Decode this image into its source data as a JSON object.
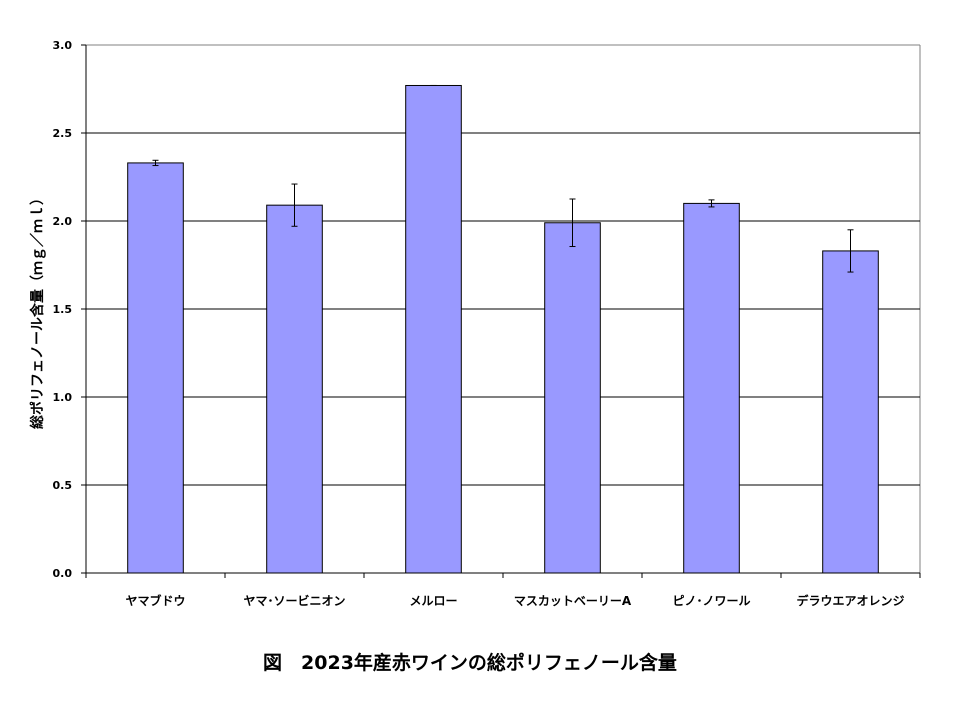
{
  "chart_data": {
    "type": "bar",
    "title": "図　2023年産赤ワインの総ポリフェノール含量",
    "xlabel": "",
    "ylabel": "総ポリフェノール含量（ｍｇ／ｍｌ）",
    "categories": [
      "ヤマブドウ",
      "ヤマ･ソービニオン",
      "メルロー",
      "マスカットベーリーA",
      "ピノ･ノワール",
      "デラウエアオレンジ"
    ],
    "series": [
      {
        "values": [
          2.33,
          2.09,
          2.77,
          1.99,
          2.1,
          1.83
        ],
        "errors": [
          0.015,
          0.12,
          0.0,
          0.135,
          0.02,
          0.12
        ]
      }
    ],
    "ylim": [
      0,
      3.0
    ],
    "yticks": [
      "0.0",
      "0.5",
      "1.0",
      "1.5",
      "2.0",
      "2.5",
      "3.0"
    ],
    "grid": true,
    "legend": "none",
    "colors": {
      "bar": "#9999ff",
      "bar_stroke": "#000000",
      "grid": "#000000"
    }
  }
}
